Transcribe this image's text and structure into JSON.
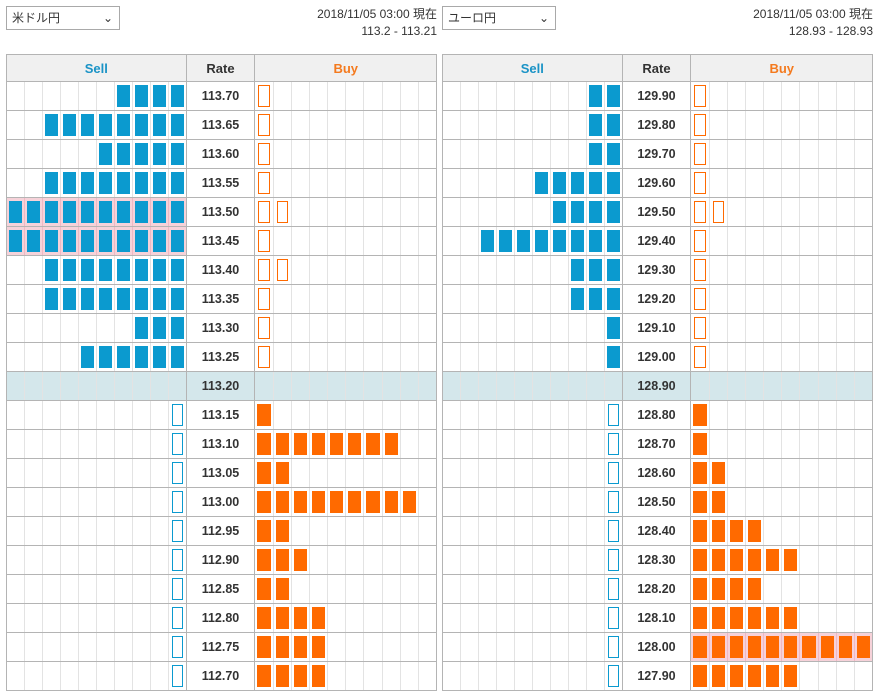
{
  "headers": {
    "sell": "Sell",
    "rate": "Rate",
    "buy": "Buy"
  },
  "panels": [
    {
      "pair": "米ドル円",
      "timestamp": "2018/11/05 03:00 現在",
      "price": "113.2 - 113.21",
      "rows": [
        {
          "rate": "113.70",
          "sell": 4,
          "buy": 1,
          "buy_outline": true
        },
        {
          "rate": "113.65",
          "sell": 8,
          "buy": 1,
          "buy_outline": true
        },
        {
          "rate": "113.60",
          "sell": 5,
          "buy": 1,
          "buy_outline": true
        },
        {
          "rate": "113.55",
          "sell": 8,
          "buy": 1,
          "buy_outline": true
        },
        {
          "rate": "113.50",
          "sell": 10,
          "buy": 2,
          "buy_outline": true,
          "sell_highlight": true
        },
        {
          "rate": "113.45",
          "sell": 10,
          "buy": 1,
          "buy_outline": true,
          "sell_highlight": true
        },
        {
          "rate": "113.40",
          "sell": 8,
          "buy": 2,
          "buy_outline": true
        },
        {
          "rate": "113.35",
          "sell": 8,
          "buy": 1,
          "buy_outline": true
        },
        {
          "rate": "113.30",
          "sell": 3,
          "buy": 1,
          "buy_outline": true
        },
        {
          "rate": "113.25",
          "sell": 6,
          "buy": 1,
          "buy_outline": true
        },
        {
          "rate": "113.20",
          "sell": 0,
          "buy": 0,
          "current": true
        },
        {
          "rate": "113.15",
          "sell": 1,
          "buy": 1,
          "sell_outline": true
        },
        {
          "rate": "113.10",
          "sell": 1,
          "buy": 8,
          "sell_outline": true
        },
        {
          "rate": "113.05",
          "sell": 1,
          "buy": 2,
          "sell_outline": true
        },
        {
          "rate": "113.00",
          "sell": 1,
          "buy": 9,
          "sell_outline": true
        },
        {
          "rate": "112.95",
          "sell": 1,
          "buy": 2,
          "sell_outline": true
        },
        {
          "rate": "112.90",
          "sell": 1,
          "buy": 3,
          "sell_outline": true
        },
        {
          "rate": "112.85",
          "sell": 1,
          "buy": 2,
          "sell_outline": true
        },
        {
          "rate": "112.80",
          "sell": 1,
          "buy": 4,
          "sell_outline": true
        },
        {
          "rate": "112.75",
          "sell": 1,
          "buy": 4,
          "sell_outline": true
        },
        {
          "rate": "112.70",
          "sell": 1,
          "buy": 4,
          "sell_outline": true
        }
      ]
    },
    {
      "pair": "ユーロ円",
      "timestamp": "2018/11/05 03:00 現在",
      "price": "128.93 - 128.93",
      "rows": [
        {
          "rate": "129.90",
          "sell": 2,
          "buy": 1,
          "buy_outline": true
        },
        {
          "rate": "129.80",
          "sell": 2,
          "buy": 1,
          "buy_outline": true
        },
        {
          "rate": "129.70",
          "sell": 2,
          "buy": 1,
          "buy_outline": true
        },
        {
          "rate": "129.60",
          "sell": 5,
          "buy": 1,
          "buy_outline": true
        },
        {
          "rate": "129.50",
          "sell": 4,
          "buy": 2,
          "buy_outline": true
        },
        {
          "rate": "129.40",
          "sell": 8,
          "buy": 1,
          "buy_outline": true
        },
        {
          "rate": "129.30",
          "sell": 3,
          "buy": 1,
          "buy_outline": true
        },
        {
          "rate": "129.20",
          "sell": 3,
          "buy": 1,
          "buy_outline": true
        },
        {
          "rate": "129.10",
          "sell": 1,
          "buy": 1,
          "buy_outline": true
        },
        {
          "rate": "129.00",
          "sell": 1,
          "buy": 1,
          "buy_outline": true
        },
        {
          "rate": "128.90",
          "sell": 0,
          "buy": 0,
          "current": true
        },
        {
          "rate": "128.80",
          "sell": 1,
          "buy": 1,
          "sell_outline": true
        },
        {
          "rate": "128.70",
          "sell": 1,
          "buy": 1,
          "sell_outline": true
        },
        {
          "rate": "128.60",
          "sell": 1,
          "buy": 2,
          "sell_outline": true
        },
        {
          "rate": "128.50",
          "sell": 1,
          "buy": 2,
          "sell_outline": true
        },
        {
          "rate": "128.40",
          "sell": 1,
          "buy": 4,
          "sell_outline": true
        },
        {
          "rate": "128.30",
          "sell": 1,
          "buy": 6,
          "sell_outline": true
        },
        {
          "rate": "128.20",
          "sell": 1,
          "buy": 4,
          "sell_outline": true
        },
        {
          "rate": "128.10",
          "sell": 1,
          "buy": 6,
          "sell_outline": true
        },
        {
          "rate": "128.00",
          "sell": 1,
          "buy": 10,
          "sell_outline": true,
          "buy_highlight": true
        },
        {
          "rate": "127.90",
          "sell": 1,
          "buy": 6,
          "sell_outline": true
        }
      ]
    }
  ],
  "colors": {
    "sell": "#0b9acf",
    "buy": "#ff6a00",
    "current_row": "#d4e7eb",
    "highlight": "#f6d2d9"
  }
}
